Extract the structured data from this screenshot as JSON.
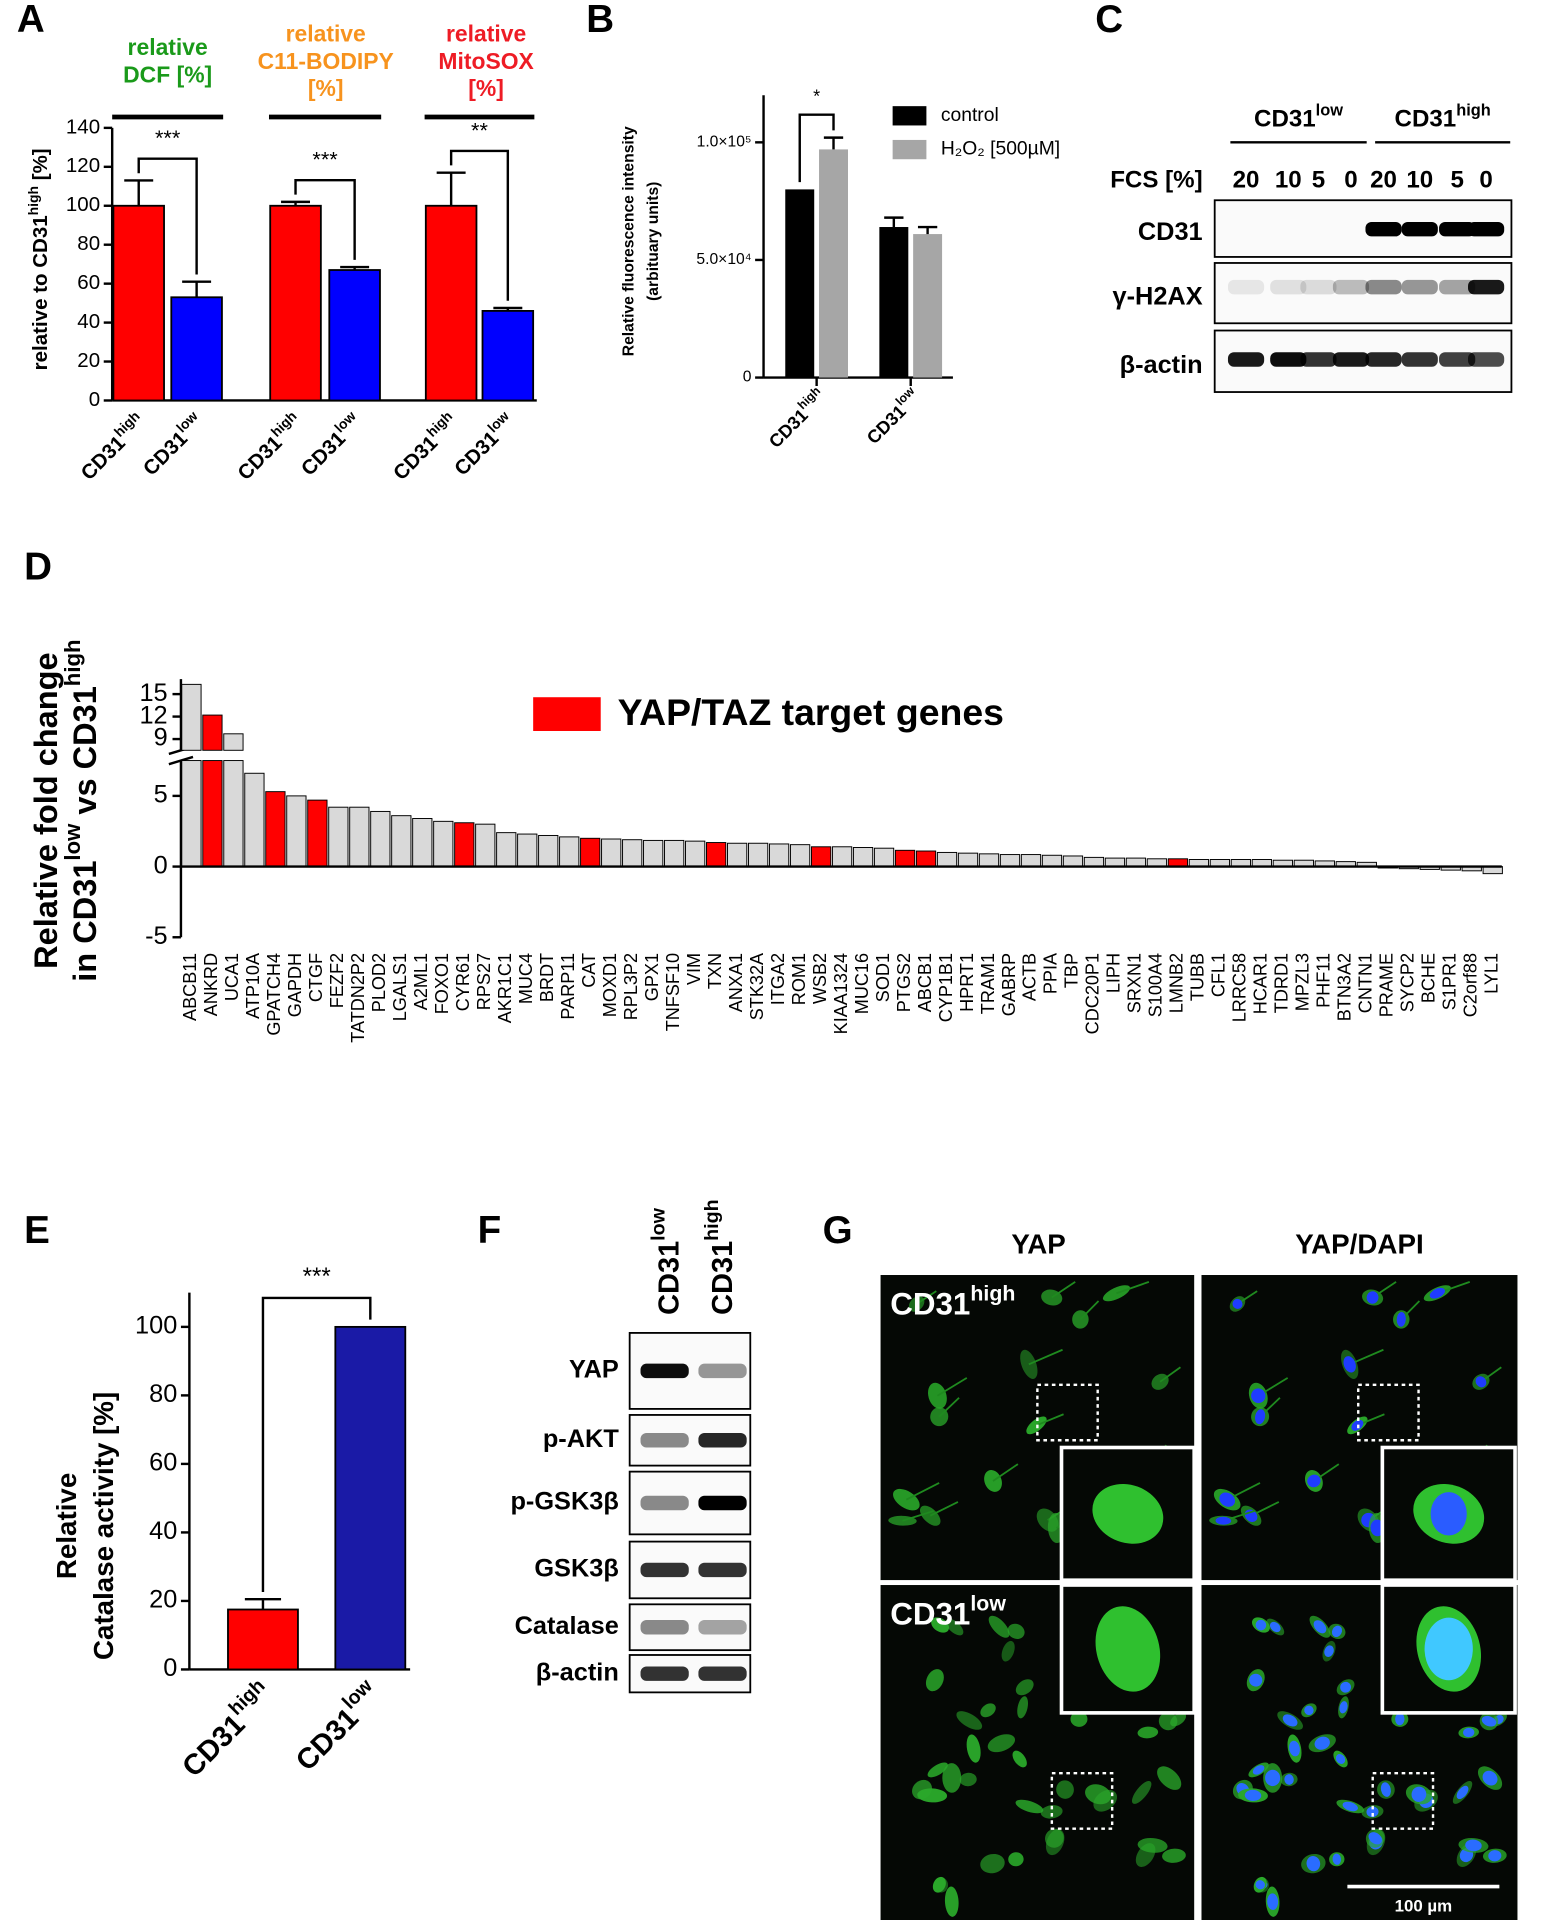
{
  "chart_data": [
    {
      "type": "bar",
      "label": "A",
      "ylabel": [
        [
          "relative to CD31",
          "high",
          " [%]"
        ]
      ],
      "ylim": [
        0,
        140
      ],
      "yticks": [
        0,
        20,
        40,
        60,
        80,
        100,
        120,
        140
      ],
      "groups": [
        {
          "title": [
            "relative",
            "DCF [%]"
          ],
          "title_color": "#1a9a1a",
          "categories": [
            [
              "CD31",
              "high"
            ],
            [
              "CD31",
              "low"
            ]
          ],
          "values": [
            100,
            53
          ],
          "errors": [
            13,
            8
          ],
          "colors": [
            "#ff0000",
            "#0000ff"
          ],
          "significance": "***"
        },
        {
          "title": [
            "relative",
            "C11-BODIPY",
            "[%]"
          ],
          "title_color": "#f7931e",
          "categories": [
            [
              "CD31",
              "high"
            ],
            [
              "CD31",
              "low"
            ]
          ],
          "values": [
            100,
            67
          ],
          "errors": [
            2,
            1.5
          ],
          "colors": [
            "#ff0000",
            "#0000ff"
          ],
          "significance": "***"
        },
        {
          "title": [
            "relative",
            "MitoSOX",
            "[%]"
          ],
          "title_color": "#ee1c25",
          "categories": [
            [
              "CD31",
              "high"
            ],
            [
              "CD31",
              "low"
            ]
          ],
          "values": [
            100,
            46
          ],
          "errors": [
            17,
            1.5
          ],
          "colors": [
            "#ff0000",
            "#0000ff"
          ],
          "significance": "**"
        }
      ]
    },
    {
      "type": "grouped_bar",
      "label": "B",
      "ylabel": [
        [
          "Relative fluorescence intensity"
        ],
        [
          "(arbituary units)"
        ]
      ],
      "ylim": [
        0,
        120000
      ],
      "yticks": [
        0,
        {
          "value": 50000,
          "label": "5.0×10⁴"
        },
        {
          "value": 100000,
          "label": "1.0×10⁵"
        }
      ],
      "categories": [
        [
          "CD31",
          "high"
        ],
        [
          "CD31",
          "low"
        ]
      ],
      "series": [
        {
          "name": "control",
          "color": "#000000",
          "values": [
            80000,
            64000
          ],
          "errors": [
            null,
            4000
          ]
        },
        {
          "name": "H₂O₂ [500µM]",
          "color": "#a6a6a6",
          "values": [
            97000,
            61000
          ],
          "errors": [
            5000,
            3000
          ]
        }
      ],
      "significance": "*"
    },
    {
      "type": "broken_bar",
      "label": "D",
      "ylabel": [
        [
          "Relative fold change"
        ],
        [
          "in CD31",
          "low",
          " vs CD31",
          "high"
        ]
      ],
      "ylim": [
        -5,
        17
      ],
      "ybreak": 7.5,
      "yticks": [
        -5,
        0,
        5,
        9,
        12,
        15
      ],
      "legend": {
        "name": "YAP/TAZ target genes",
        "color": "#ff0000"
      },
      "categories": [
        "ABCB11",
        "ANKRD",
        "UCA1",
        "ATP10A",
        "GPATCH4",
        "GAPDH",
        "CTGF",
        "FEZF2",
        "TATDN2P2",
        "PLOD2",
        "LGALS1",
        "A2ML1",
        "FOXO1",
        "CYR61",
        "RPS27",
        "AKR1C1",
        "MUC4",
        "BRDT",
        "PARP11",
        "CAT",
        "MOXD1",
        "RPL3P2",
        "GPX1",
        "TNFSF10",
        "VIM",
        "TXN",
        "ANXA1",
        "STK32A",
        "ITGA2",
        "ROM1",
        "WSB2",
        "KIAA1324",
        "MUC16",
        "SOD1",
        "PTGS2",
        "ABCB1",
        "CYP1B1",
        "HPRT1",
        "TRAM1",
        "GABRP",
        "ACTB",
        "PPIA",
        "TBP",
        "CDC20P1",
        "LIPH",
        "SRXN1",
        "S100A4",
        "LMNB2",
        "TUBB",
        "CFL1",
        "LRRC58",
        "HCAR1",
        "TDRD1",
        "MPZL3",
        "PHF11",
        "BTN3A2",
        "CNTN1",
        "PRAME",
        "SYCP2",
        "BCHE",
        "S1PR1",
        "C2orf88",
        "LYL1"
      ],
      "values": [
        16.3,
        12.2,
        9.7,
        6.6,
        5.3,
        5.0,
        4.7,
        4.2,
        4.2,
        3.9,
        3.6,
        3.4,
        3.2,
        3.1,
        3.0,
        2.4,
        2.3,
        2.2,
        2.1,
        2.0,
        1.95,
        1.9,
        1.85,
        1.85,
        1.8,
        1.7,
        1.65,
        1.65,
        1.6,
        1.55,
        1.4,
        1.4,
        1.35,
        1.3,
        1.15,
        1.1,
        1.0,
        0.95,
        0.9,
        0.85,
        0.85,
        0.8,
        0.75,
        0.65,
        0.6,
        0.6,
        0.55,
        0.55,
        0.5,
        0.5,
        0.5,
        0.5,
        0.45,
        0.45,
        0.4,
        0.35,
        0.3,
        -0.1,
        -0.15,
        -0.2,
        -0.25,
        -0.3,
        -0.5
      ],
      "colors": [
        "#d9d9d9",
        "#ff0000",
        "#d9d9d9",
        "#d9d9d9",
        "#ff0000",
        "#d9d9d9",
        "#ff0000",
        "#d9d9d9",
        "#d9d9d9",
        "#d9d9d9",
        "#d9d9d9",
        "#d9d9d9",
        "#d9d9d9",
        "#ff0000",
        "#d9d9d9",
        "#d9d9d9",
        "#d9d9d9",
        "#d9d9d9",
        "#d9d9d9",
        "#ff0000",
        "#d9d9d9",
        "#d9d9d9",
        "#d9d9d9",
        "#d9d9d9",
        "#d9d9d9",
        "#ff0000",
        "#d9d9d9",
        "#d9d9d9",
        "#d9d9d9",
        "#d9d9d9",
        "#ff0000",
        "#d9d9d9",
        "#d9d9d9",
        "#d9d9d9",
        "#ff0000",
        "#ff0000",
        "#d9d9d9",
        "#d9d9d9",
        "#d9d9d9",
        "#d9d9d9",
        "#d9d9d9",
        "#d9d9d9",
        "#d9d9d9",
        "#d9d9d9",
        "#d9d9d9",
        "#d9d9d9",
        "#d9d9d9",
        "#ff0000",
        "#d9d9d9",
        "#d9d9d9",
        "#d9d9d9",
        "#d9d9d9",
        "#d9d9d9",
        "#d9d9d9",
        "#d9d9d9",
        "#d9d9d9",
        "#d9d9d9",
        "#d9d9d9",
        "#d9d9d9",
        "#d9d9d9",
        "#d9d9d9",
        "#d9d9d9",
        "#d9d9d9"
      ]
    },
    {
      "type": "bar",
      "label": "E",
      "ylabel": [
        [
          "Relative"
        ],
        [
          "Catalase activity [%]"
        ]
      ],
      "ylim": [
        0,
        110
      ],
      "yticks": [
        0,
        20,
        40,
        60,
        80,
        100
      ],
      "groups": [
        {
          "categories": [
            [
              "CD31",
              "high"
            ],
            [
              "CD31",
              "low"
            ]
          ],
          "values": [
            17.5,
            100
          ],
          "errors": [
            3,
            null
          ],
          "colors": [
            "#ff0000",
            "#1a1aa6"
          ],
          "significance": "***"
        }
      ]
    }
  ],
  "blots": [
    {
      "label": "C",
      "groups": [
        [
          "CD31",
          "low"
        ],
        [
          "CD31",
          "high"
        ]
      ],
      "lane_header": "FCS [%]",
      "lanes": [
        "20",
        "10",
        "5",
        "0",
        "20",
        "10",
        "5",
        "0"
      ],
      "rows": [
        "CD31",
        "γ-H2AX",
        "β-actin"
      ]
    },
    {
      "label": "F",
      "groups": [
        [
          "CD31",
          "low"
        ],
        [
          "CD31",
          "high"
        ]
      ],
      "rows": [
        "YAP",
        "p-AKT",
        "p-GSK3β",
        "GSK3β",
        "Catalase",
        "β-actin"
      ]
    }
  ],
  "microscopy": {
    "label": "G",
    "columns": [
      "YAP",
      "YAP/DAPI"
    ],
    "rows": [
      [
        "CD31",
        "high"
      ],
      [
        "CD31",
        "low"
      ]
    ],
    "scale_bar": "100 µm"
  }
}
